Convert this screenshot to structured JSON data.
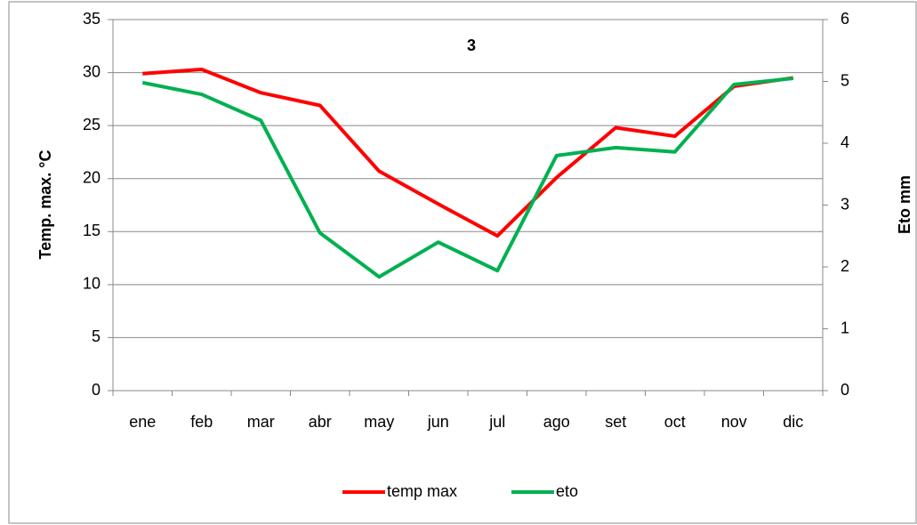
{
  "chart_data": {
    "type": "line",
    "title": "3",
    "categories": [
      "ene",
      "feb",
      "mar",
      "abr",
      "may",
      "jun",
      "jul",
      "ago",
      "set",
      "oct",
      "nov",
      "dic"
    ],
    "series": [
      {
        "name": "temp max",
        "color": "#ff0000",
        "values": [
          29.9,
          30.3,
          28.1,
          26.9,
          20.7,
          17.6,
          14.6,
          20.1,
          24.8,
          24.0,
          28.7,
          29.5
        ]
      },
      {
        "name": "eto",
        "color": "#00b050",
        "axis": "y2",
        "values": [
          4.98,
          4.79,
          4.37,
          2.55,
          1.84,
          2.4,
          1.94,
          3.8,
          3.93,
          3.86,
          4.95,
          5.05
        ]
      }
    ],
    "ylabel": "Temp. max. °C",
    "y2label": "Eto mm",
    "ylim": [
      0,
      35
    ],
    "yticks": [
      0,
      5,
      10,
      15,
      20,
      25,
      30,
      35
    ],
    "y2lim": [
      0,
      6
    ],
    "y2ticks": [
      0,
      1,
      2,
      3,
      4,
      5,
      6
    ],
    "grid": true,
    "legend": "bottom"
  }
}
